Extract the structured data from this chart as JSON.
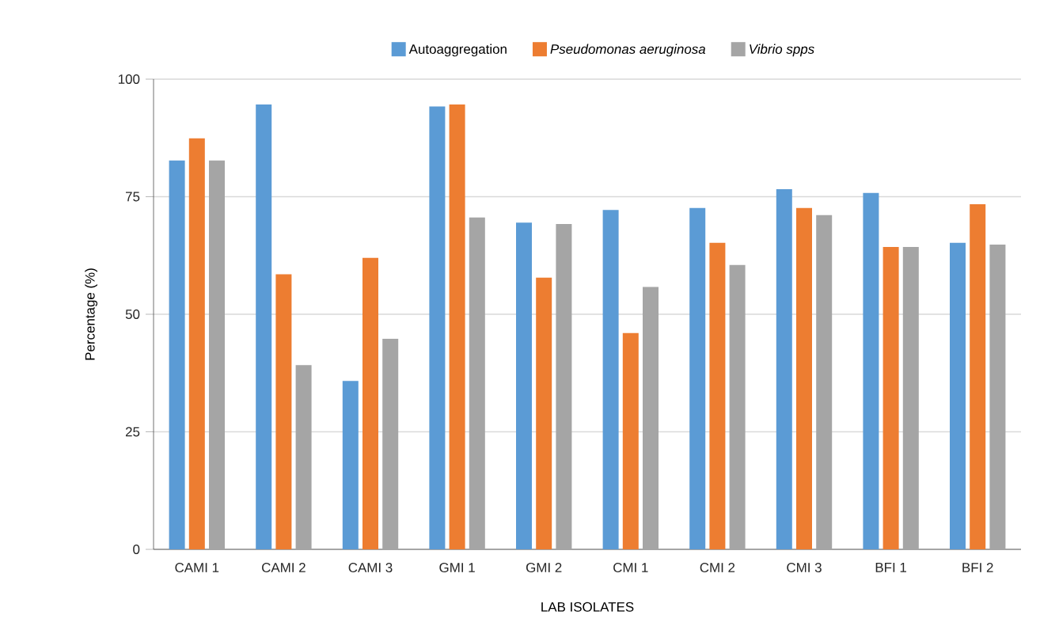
{
  "chart_data": {
    "type": "bar",
    "xlabel": "LAB ISOLATES",
    "ylabel": "Percentage (%)",
    "categories": [
      "CAMI 1",
      "CAMI 2",
      "CAMI 3",
      "GMI 1",
      "GMI 2",
      "CMI 1",
      "CMI 2",
      "CMI 3",
      "BFI 1",
      "BFI 2"
    ],
    "series": [
      {
        "name": "Autoaggregation",
        "color": "#5b9bd5",
        "values": [
          82.7,
          94.6,
          35.8,
          94.2,
          69.5,
          72.2,
          72.6,
          76.6,
          75.8,
          65.2
        ]
      },
      {
        "name": "*Pseudomonas aeruginosa*",
        "color": "#ed7d31",
        "values": [
          87.4,
          58.5,
          62,
          94.6,
          57.8,
          46,
          65.2,
          72.6,
          64.3,
          73.4
        ]
      },
      {
        "name": "*Vibrio spps*",
        "color": "#a5a5a5",
        "values": [
          82.7,
          39.2,
          44.8,
          70.6,
          69.2,
          55.8,
          60.5,
          71.1,
          64.3,
          64.8
        ]
      }
    ],
    "ylim": [
      0,
      100
    ],
    "yticks": [
      0,
      25,
      50,
      75,
      100
    ],
    "grid": "y",
    "legend": "top"
  }
}
